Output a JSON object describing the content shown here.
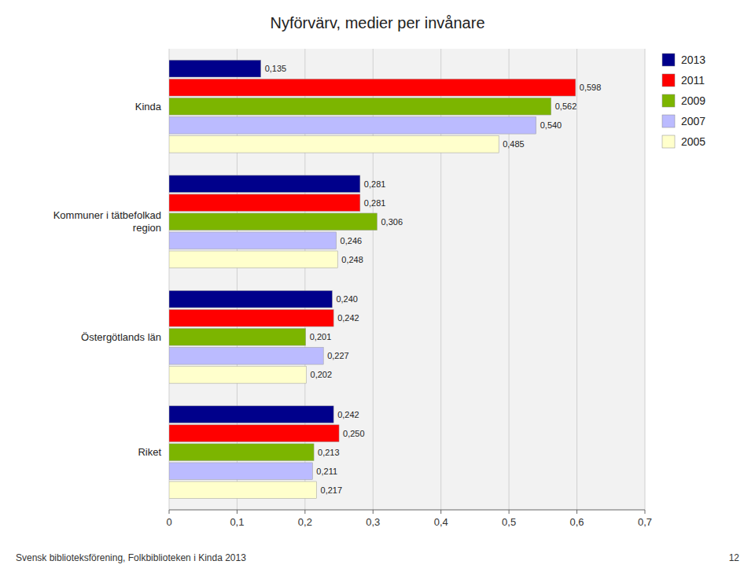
{
  "chart_data": {
    "type": "bar",
    "orientation": "horizontal",
    "title": "Nyförvärv, medier per invånare",
    "categories": [
      "Kinda",
      "Kommuner i tätbefolkad\nregion",
      "Östergötlands län",
      "Riket"
    ],
    "series": [
      {
        "name": "2013",
        "color": "#00008B",
        "values": [
          0.135,
          0.281,
          0.24,
          0.242
        ],
        "value_labels": [
          "0,135",
          "0,281",
          "0,240",
          "0,242"
        ]
      },
      {
        "name": "2011",
        "color": "#FF0000",
        "values": [
          0.598,
          0.281,
          0.242,
          0.25
        ],
        "value_labels": [
          "0,598",
          "0,281",
          "0,242",
          "0,250"
        ]
      },
      {
        "name": "2009",
        "color": "#7CB500",
        "values": [
          0.562,
          0.306,
          0.201,
          0.213
        ],
        "value_labels": [
          "0,562",
          "0,306",
          "0,201",
          "0,213"
        ]
      },
      {
        "name": "2007",
        "color": "#BBBBFF",
        "values": [
          0.54,
          0.246,
          0.227,
          0.211
        ],
        "value_labels": [
          "0,540",
          "0,246",
          "0,227",
          "0,211"
        ]
      },
      {
        "name": "2005",
        "color": "#FFFFCC",
        "values": [
          0.485,
          0.248,
          0.202,
          0.217
        ],
        "value_labels": [
          "0,485",
          "0,248",
          "0,202",
          "0,217"
        ]
      }
    ],
    "xlim": [
      0,
      0.7
    ],
    "xticks": [
      0,
      {
        "value": 0.1,
        "label": "0,1"
      },
      {
        "value": 0.2,
        "label": "0,2"
      },
      {
        "value": 0.3,
        "label": "0,3"
      },
      {
        "value": 0.4,
        "label": "0,4"
      },
      {
        "value": 0.5,
        "label": "0,5"
      },
      {
        "value": 0.6,
        "label": "0,6"
      },
      {
        "value": 0.7,
        "label": "0,7"
      }
    ],
    "grid": true,
    "legend": "right",
    "data_labels": true,
    "annotations": [
      "Svensk biblioteksförening, Folkbiblioteken i Kinda 2013",
      "12"
    ]
  }
}
